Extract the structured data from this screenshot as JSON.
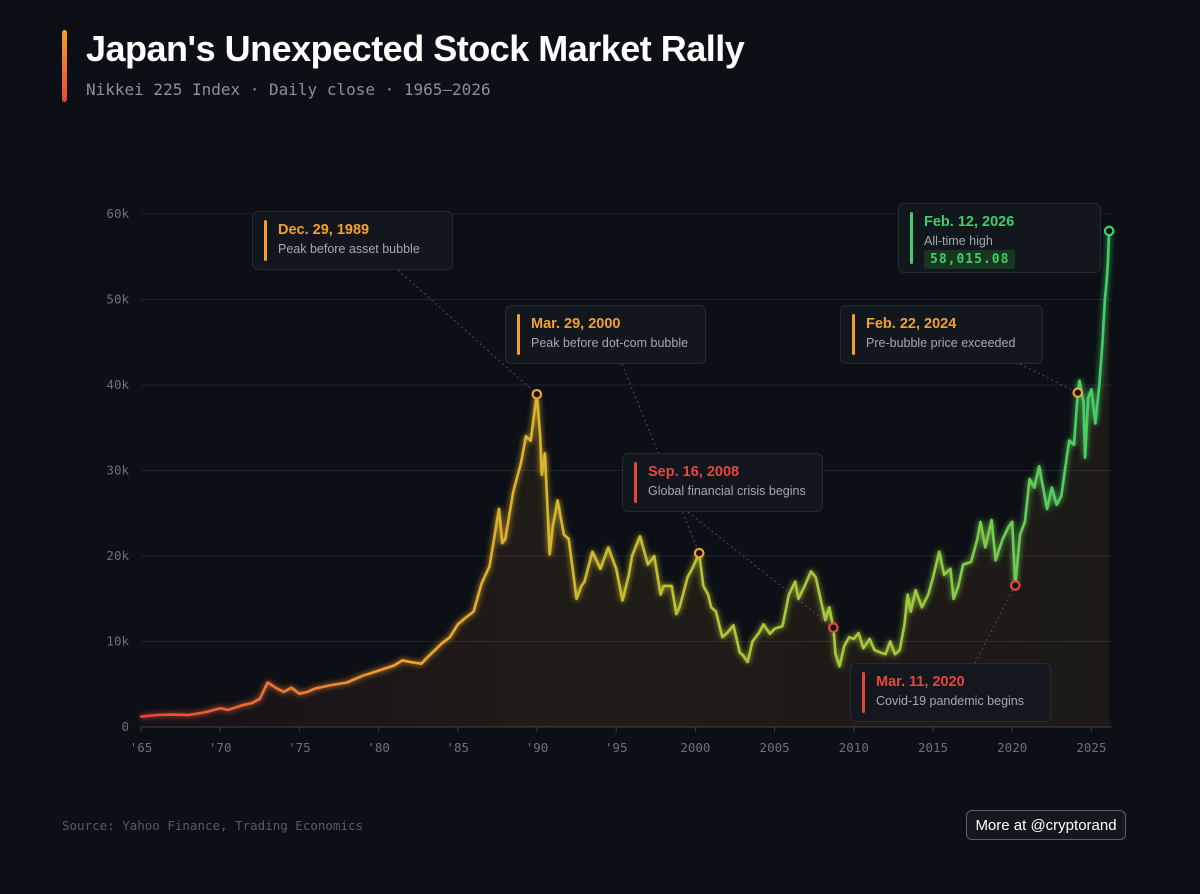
{
  "header": {
    "title": "Japan's Unexpected Stock Market Rally",
    "subtitle": "Nikkei 225 Index · Daily close · 1965–2026"
  },
  "footer": {
    "source": "Source: Yahoo Finance, Trading Economics",
    "more_label": "More at @cryptorand"
  },
  "colors": {
    "background": "#0c0f15",
    "red": "#e6463c",
    "orange": "#f2a12c",
    "yellowgreen": "#a8c83a",
    "green": "#3ecf6a",
    "grid": "#1e222b",
    "axis_text": "#6b707a"
  },
  "annotations": [
    {
      "date": "Dec. 29, 1989",
      "desc": "Peak before asset bubble",
      "color": "orange",
      "x": 1989.99,
      "y": 38916
    },
    {
      "date": "Mar. 29, 2000",
      "desc": "Peak before dot-com bubble",
      "color": "orange",
      "x": 2000.24,
      "y": 20337
    },
    {
      "date": "Sep. 16, 2008",
      "desc": "Global financial crisis begins",
      "color": "red",
      "x": 2008.71,
      "y": 11610
    },
    {
      "date": "Mar. 11, 2020",
      "desc": "Covid-19 pandemic begins",
      "color": "red",
      "x": 2020.19,
      "y": 16552
    },
    {
      "date": "Feb. 22, 2024",
      "desc": "Pre-bubble price exceeded",
      "color": "orange",
      "x": 2024.14,
      "y": 39098
    },
    {
      "date": "Feb. 12, 2026",
      "desc": "All-time high",
      "value": "58,015.08",
      "color": "green",
      "x": 2026.12,
      "y": 58015
    }
  ],
  "chart_data": {
    "type": "line",
    "title": "Japan's Unexpected Stock Market Rally",
    "xlabel": "",
    "ylabel": "",
    "xlim": [
      1965,
      2026.3
    ],
    "ylim": [
      0,
      60000
    ],
    "x_ticks": [
      1965,
      1970,
      1975,
      1980,
      1985,
      1990,
      1995,
      2000,
      2005,
      2010,
      2015,
      2020,
      2025
    ],
    "x_tick_labels": [
      "'65",
      "'70",
      "'75",
      "'80",
      "'85",
      "'90",
      "'95",
      "2000",
      "2005",
      "2010",
      "2015",
      "2020",
      "2025"
    ],
    "y_ticks": [
      0,
      10000,
      20000,
      30000,
      40000,
      50000,
      60000
    ],
    "y_tick_labels": [
      "0",
      "10k",
      "20k",
      "30k",
      "40k",
      "50k",
      "60k"
    ],
    "series": [
      {
        "name": "Nikkei 225",
        "points": [
          [
            1965.0,
            1200
          ],
          [
            1966.0,
            1400
          ],
          [
            1967.0,
            1450
          ],
          [
            1968.0,
            1400
          ],
          [
            1969.0,
            1700
          ],
          [
            1970.0,
            2200
          ],
          [
            1970.5,
            2000
          ],
          [
            1971.0,
            2300
          ],
          [
            1971.5,
            2600
          ],
          [
            1972.0,
            2800
          ],
          [
            1972.5,
            3300
          ],
          [
            1973.0,
            5200
          ],
          [
            1973.5,
            4600
          ],
          [
            1974.0,
            4100
          ],
          [
            1974.5,
            4600
          ],
          [
            1975.0,
            3900
          ],
          [
            1975.5,
            4100
          ],
          [
            1976.0,
            4500
          ],
          [
            1977.0,
            4900
          ],
          [
            1978.0,
            5200
          ],
          [
            1979.0,
            6000
          ],
          [
            1980.0,
            6600
          ],
          [
            1981.0,
            7200
          ],
          [
            1981.5,
            7800
          ],
          [
            1982.0,
            7600
          ],
          [
            1982.7,
            7400
          ],
          [
            1983.0,
            8000
          ],
          [
            1984.0,
            9800
          ],
          [
            1984.5,
            10500
          ],
          [
            1985.0,
            12000
          ],
          [
            1985.5,
            12800
          ],
          [
            1986.0,
            13500
          ],
          [
            1986.5,
            16800
          ],
          [
            1987.0,
            18800
          ],
          [
            1987.6,
            25500
          ],
          [
            1987.8,
            21500
          ],
          [
            1988.0,
            22000
          ],
          [
            1988.5,
            27500
          ],
          [
            1989.0,
            31000
          ],
          [
            1989.3,
            34000
          ],
          [
            1989.6,
            33500
          ],
          [
            1989.99,
            38916
          ],
          [
            1990.2,
            34000
          ],
          [
            1990.3,
            29500
          ],
          [
            1990.5,
            32000
          ],
          [
            1990.8,
            20200
          ],
          [
            1991.0,
            23500
          ],
          [
            1991.3,
            26500
          ],
          [
            1991.7,
            22500
          ],
          [
            1992.0,
            22000
          ],
          [
            1992.5,
            15000
          ],
          [
            1992.8,
            16500
          ],
          [
            1993.0,
            17000
          ],
          [
            1993.5,
            20500
          ],
          [
            1994.0,
            18500
          ],
          [
            1994.5,
            21000
          ],
          [
            1995.0,
            18500
          ],
          [
            1995.4,
            14800
          ],
          [
            1995.8,
            17800
          ],
          [
            1996.0,
            20000
          ],
          [
            1996.5,
            22300
          ],
          [
            1997.0,
            19000
          ],
          [
            1997.4,
            20000
          ],
          [
            1997.8,
            15500
          ],
          [
            1998.0,
            16500
          ],
          [
            1998.5,
            16500
          ],
          [
            1998.8,
            13200
          ],
          [
            1999.0,
            14000
          ],
          [
            1999.5,
            17500
          ],
          [
            1999.8,
            18500
          ],
          [
            2000.24,
            20337
          ],
          [
            2000.5,
            16500
          ],
          [
            2000.8,
            15500
          ],
          [
            2001.0,
            14000
          ],
          [
            2001.3,
            13500
          ],
          [
            2001.7,
            10500
          ],
          [
            2002.0,
            11000
          ],
          [
            2002.4,
            11900
          ],
          [
            2002.8,
            8700
          ],
          [
            2003.0,
            8400
          ],
          [
            2003.3,
            7600
          ],
          [
            2003.6,
            10000
          ],
          [
            2004.0,
            11000
          ],
          [
            2004.3,
            12000
          ],
          [
            2004.7,
            10900
          ],
          [
            2005.0,
            11500
          ],
          [
            2005.5,
            11800
          ],
          [
            2005.9,
            15500
          ],
          [
            2006.3,
            17000
          ],
          [
            2006.5,
            15000
          ],
          [
            2006.9,
            16500
          ],
          [
            2007.3,
            18200
          ],
          [
            2007.6,
            17500
          ],
          [
            2007.9,
            15000
          ],
          [
            2008.2,
            12500
          ],
          [
            2008.45,
            14000
          ],
          [
            2008.71,
            11610
          ],
          [
            2008.85,
            8500
          ],
          [
            2009.1,
            7100
          ],
          [
            2009.4,
            9500
          ],
          [
            2009.7,
            10500
          ],
          [
            2010.0,
            10300
          ],
          [
            2010.3,
            11000
          ],
          [
            2010.6,
            9200
          ],
          [
            2011.0,
            10300
          ],
          [
            2011.3,
            9000
          ],
          [
            2011.7,
            8700
          ],
          [
            2012.0,
            8500
          ],
          [
            2012.3,
            10000
          ],
          [
            2012.6,
            8500
          ],
          [
            2012.9,
            9000
          ],
          [
            2013.2,
            12000
          ],
          [
            2013.4,
            15500
          ],
          [
            2013.6,
            13500
          ],
          [
            2013.9,
            16000
          ],
          [
            2014.3,
            14000
          ],
          [
            2014.7,
            15500
          ],
          [
            2015.0,
            17500
          ],
          [
            2015.4,
            20500
          ],
          [
            2015.7,
            17800
          ],
          [
            2016.1,
            18500
          ],
          [
            2016.3,
            15000
          ],
          [
            2016.6,
            16500
          ],
          [
            2016.9,
            19000
          ],
          [
            2017.4,
            19300
          ],
          [
            2017.8,
            22000
          ],
          [
            2018.0,
            24000
          ],
          [
            2018.3,
            21000
          ],
          [
            2018.7,
            24200
          ],
          [
            2018.95,
            19500
          ],
          [
            2019.4,
            22000
          ],
          [
            2019.8,
            23500
          ],
          [
            2020.0,
            24000
          ],
          [
            2020.19,
            16552
          ],
          [
            2020.5,
            22500
          ],
          [
            2020.8,
            24000
          ],
          [
            2021.1,
            29000
          ],
          [
            2021.4,
            28000
          ],
          [
            2021.7,
            30500
          ],
          [
            2021.9,
            28500
          ],
          [
            2022.2,
            25500
          ],
          [
            2022.5,
            28000
          ],
          [
            2022.8,
            26000
          ],
          [
            2023.1,
            27000
          ],
          [
            2023.4,
            31000
          ],
          [
            2023.6,
            33500
          ],
          [
            2023.9,
            33000
          ],
          [
            2024.14,
            39098
          ],
          [
            2024.25,
            40500
          ],
          [
            2024.5,
            38000
          ],
          [
            2024.6,
            31500
          ],
          [
            2024.8,
            38500
          ],
          [
            2025.0,
            39500
          ],
          [
            2025.25,
            35500
          ],
          [
            2025.5,
            40000
          ],
          [
            2025.7,
            45000
          ],
          [
            2025.85,
            50000
          ],
          [
            2025.95,
            52000
          ],
          [
            2026.05,
            54500
          ],
          [
            2026.12,
            58015
          ]
        ]
      }
    ]
  }
}
